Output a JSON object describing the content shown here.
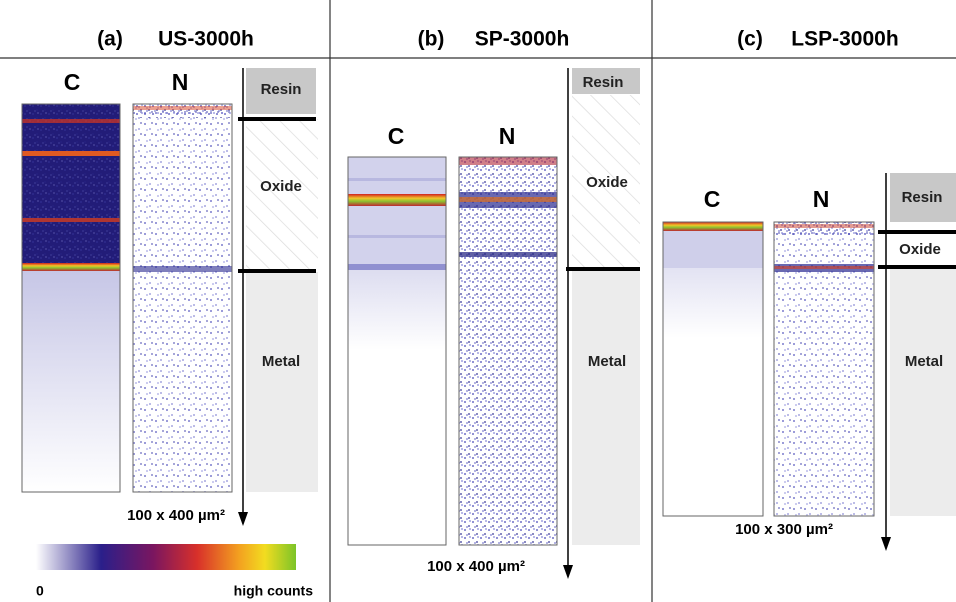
{
  "panels": [
    {
      "label": "(a)",
      "title": "US-3000h",
      "maps": [
        "C",
        "N"
      ],
      "layers": [
        "Resin",
        "Oxide",
        "Metal"
      ],
      "scale": "100 x 400 µm²"
    },
    {
      "label": "(b)",
      "title": "SP-3000h",
      "maps": [
        "C",
        "N"
      ],
      "layers": [
        "Resin",
        "Oxide",
        "Metal"
      ],
      "scale": "100 x 400 µm²"
    },
    {
      "label": "(c)",
      "title": "LSP-3000h",
      "maps": [
        "C",
        "N"
      ],
      "layers": [
        "Resin",
        "Oxide",
        "Metal"
      ],
      "scale": "100 x 300 µm²"
    }
  ],
  "colorbar": {
    "min_label": "0",
    "max_label": "high counts"
  }
}
